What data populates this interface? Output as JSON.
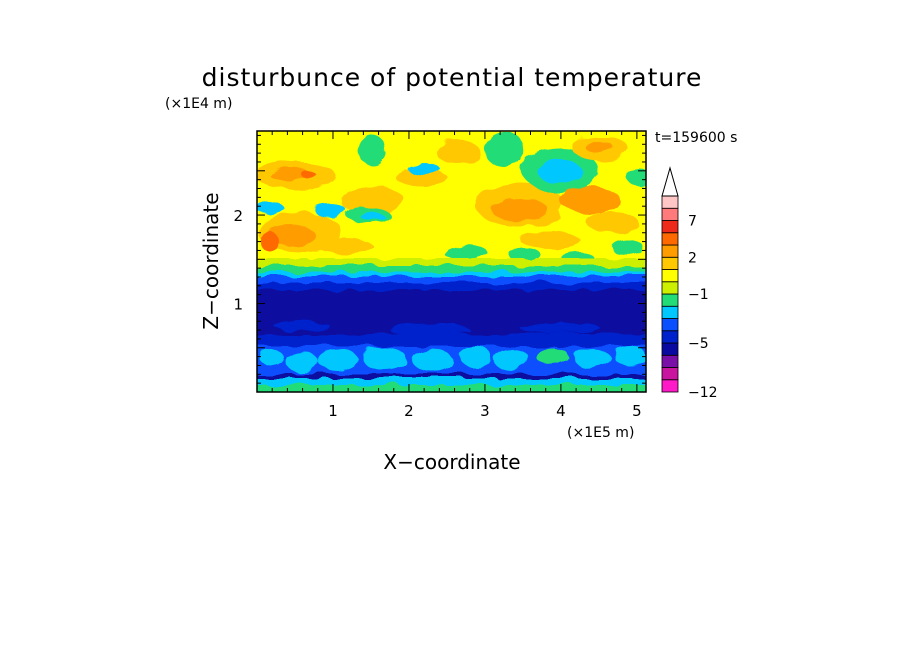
{
  "chart_data": {
    "type": "heatmap",
    "title": "disturbunce of potential temperature",
    "time_label": "t=159600 s",
    "xlabel": "X−coordinate",
    "ylabel": "Z−coordinate",
    "x_unit": "(×1E5 m)",
    "y_unit": "(×1E4 m)",
    "xlim": [
      0,
      5.12
    ],
    "ylim": [
      0,
      2.95
    ],
    "x_ticks": [
      1,
      2,
      3,
      4,
      5
    ],
    "x_tick_labels": [
      "1",
      "2",
      "3",
      "4",
      "5"
    ],
    "y_ticks": [
      1,
      2
    ],
    "y_tick_labels": [
      "1",
      "2"
    ],
    "colorbar": {
      "levels": [
        -12,
        -10,
        -8,
        -6,
        -5,
        -4,
        -3,
        -2,
        -1,
        0,
        1,
        2,
        3,
        5,
        7,
        9,
        12
      ],
      "colors": [
        "#ff1ac8",
        "#c8149e",
        "#7a0fa8",
        "#0a0aa0",
        "#0022cc",
        "#0a50ff",
        "#00c8ff",
        "#22dd77",
        "#ccf000",
        "#ffff00",
        "#ffc800",
        "#ff9c00",
        "#ff6a00",
        "#ee2a1a",
        "#ff7a7a",
        "#ffc6c6"
      ],
      "tick_values": [
        7,
        2,
        -1,
        -5,
        -12
      ],
      "tick_labels": [
        "7",
        "2",
        "−1",
        "−5",
        "−12"
      ],
      "extend_top": true
    },
    "structure": [
      {
        "z_range": [
          0.0,
          0.12
        ],
        "description": "cyan/green near-surface layer"
      },
      {
        "z_range": [
          0.12,
          0.6
        ],
        "description": "cyan convective cells over dark blue"
      },
      {
        "z_range": [
          0.6,
          1.25
        ],
        "description": "deep negative layer, dark blue (~-5)"
      },
      {
        "z_range": [
          1.25,
          1.45
        ],
        "description": "transition blue/cyan/green"
      },
      {
        "z_range": [
          1.45,
          2.95
        ],
        "description": "positive layer yellow/orange with wave patterns"
      }
    ]
  }
}
